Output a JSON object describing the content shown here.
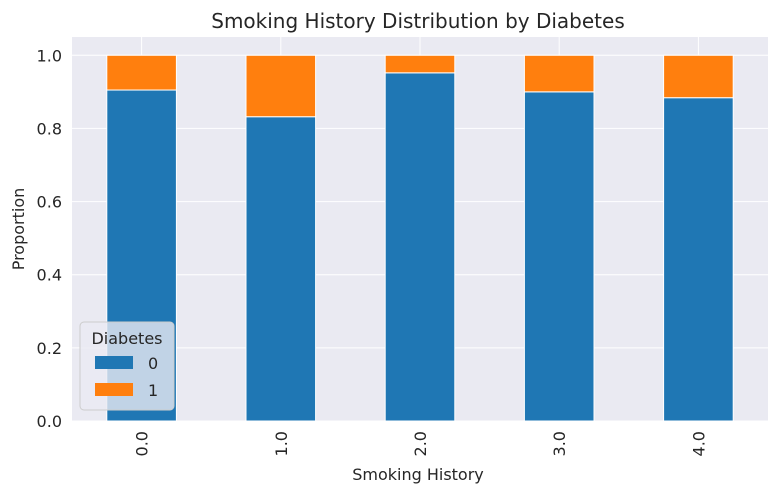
{
  "chart_data": {
    "type": "bar",
    "stacked": true,
    "title": "Smoking History Distribution by Diabetes",
    "xlabel": "Smoking History",
    "ylabel": "Proportion",
    "categories": [
      "0.0",
      "1.0",
      "2.0",
      "3.0",
      "4.0"
    ],
    "series": [
      {
        "name": "0",
        "color": "#1f77b4",
        "values": [
          0.905,
          0.832,
          0.952,
          0.9,
          0.884
        ]
      },
      {
        "name": "1",
        "color": "#ff7f0e",
        "values": [
          0.095,
          0.168,
          0.048,
          0.1,
          0.116
        ]
      }
    ],
    "ylim": [
      0,
      1.05
    ],
    "yticks": [
      "0.0",
      "0.2",
      "0.4",
      "0.6",
      "0.8",
      "1.0"
    ],
    "grid": true,
    "background_color": "#eaeaf2",
    "legend": {
      "title": "Diabetes",
      "placement": "lower-left"
    }
  }
}
